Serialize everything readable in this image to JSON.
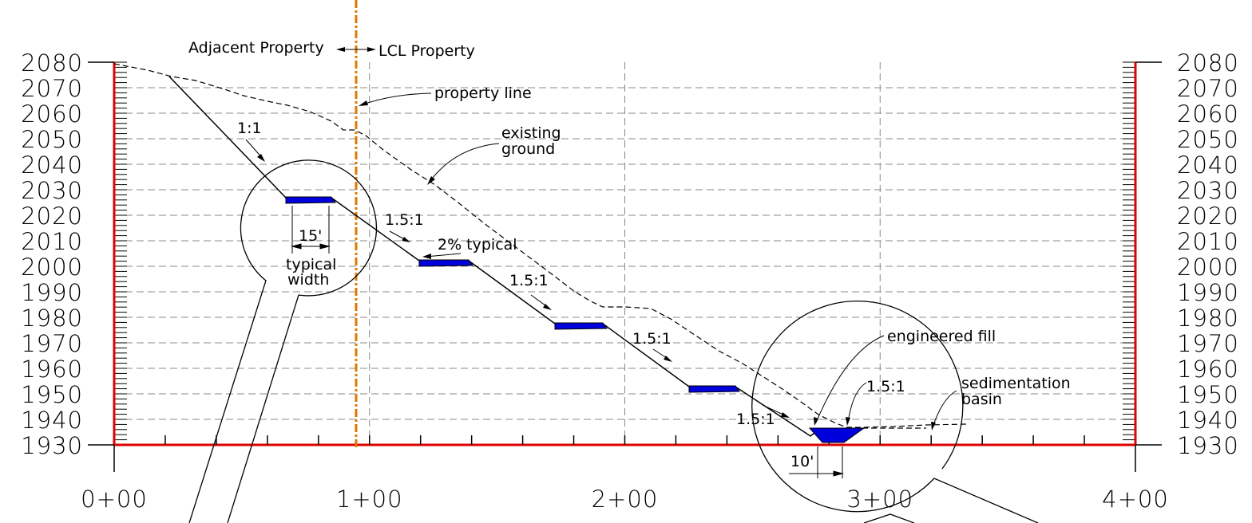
{
  "y_axis": {
    "ticks": [
      "2080",
      "2070",
      "2060",
      "2050",
      "2040",
      "2030",
      "2020",
      "2010",
      "2000",
      "1990",
      "1980",
      "1970",
      "1960",
      "1950",
      "1940",
      "1930"
    ]
  },
  "x_axis": {
    "ticks": [
      "0+00",
      "1+00",
      "2+00",
      "3+00",
      "4+00"
    ]
  },
  "labels": {
    "adjacent": "Adjacent Property",
    "lcl": "LCL Property",
    "property_line": "property line",
    "existing_1": "existing",
    "existing_2": "ground",
    "slope_1_1": "1:1",
    "slope_15_a": "1.5:1",
    "slope_15_b": "1.5:1",
    "slope_15_c": "1.5:1",
    "slope_15_d": "1.5:1",
    "slope_15_e": "1.5:1",
    "typical_grade": "2% typical",
    "dim_15": "15'",
    "typical_1": "typical",
    "typical_2": "width",
    "engineered_fill": "engineered fill",
    "sed_1": "sedimentation",
    "sed_2": "basin",
    "dim_10": "10'"
  },
  "colors": {
    "frame": "#e00000",
    "property_line": "#e07800",
    "bench_fill": "#0000dd",
    "grid": "#888888"
  }
}
